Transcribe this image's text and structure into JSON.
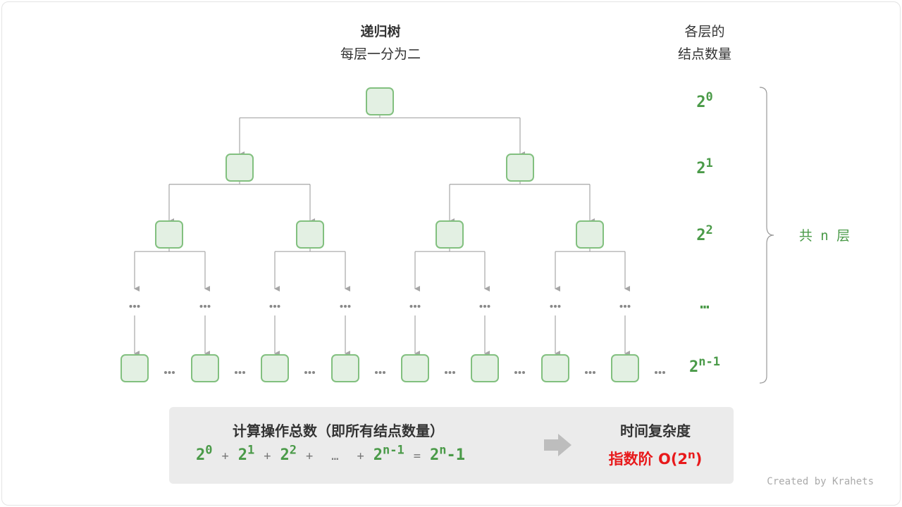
{
  "header": {
    "title": "递归树",
    "subtitle": "每层一分为二",
    "count_title_1": "各层的",
    "count_title_2": "结点数量"
  },
  "levels": [
    {
      "base": "2",
      "exp": "0"
    },
    {
      "base": "2",
      "exp": "1"
    },
    {
      "base": "2",
      "exp": "2"
    },
    {
      "base": "…",
      "exp": ""
    },
    {
      "base": "2",
      "exp": "n-1"
    }
  ],
  "brace_label": "共 n 层",
  "summary": {
    "title": "计算操作总数（即所有结点数量）",
    "formula": [
      {
        "base": "2",
        "exp": "0"
      },
      {
        "op": "+"
      },
      {
        "base": "2",
        "exp": "1"
      },
      {
        "op": "+"
      },
      {
        "base": "2",
        "exp": "2"
      },
      {
        "op": "+"
      },
      {
        "op": "…"
      },
      {
        "op": "+"
      },
      {
        "base": "2",
        "exp": "n-1"
      },
      {
        "op": "="
      },
      {
        "base": "2",
        "exp": "n",
        "tail": "-1"
      }
    ],
    "complexity_title": "时间复杂度",
    "complexity_value": "指数阶 O(2",
    "complexity_exp": "n",
    "complexity_close": ")"
  },
  "credit": "Created by Krahets",
  "colors": {
    "node_fill": "#e3f0e3",
    "node_stroke": "#82c07f",
    "green": "#4a9a48",
    "red": "#e8191b",
    "edge": "#a6a6a6"
  }
}
